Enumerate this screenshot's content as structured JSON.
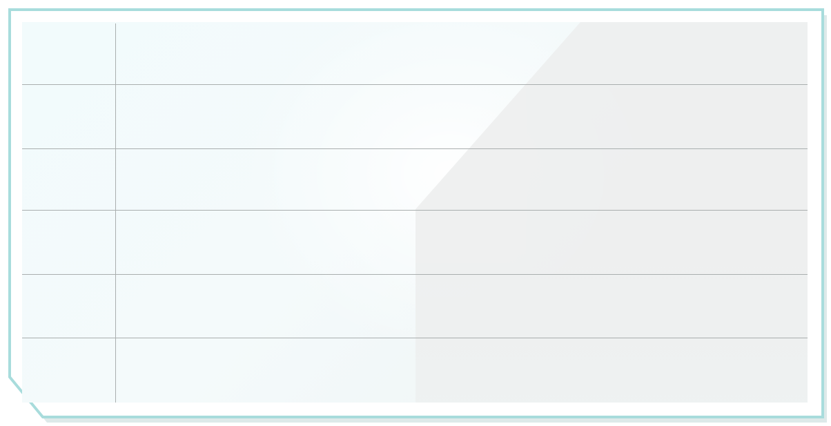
{
  "card": {
    "border_color": "#a8dcdc",
    "shadow_color": "#bfdcdc",
    "paper_tint": "#f2fbfc",
    "glare_tint": "#eeefef",
    "rule_color": "#a9aeae",
    "rows": 6,
    "columns": 2
  }
}
